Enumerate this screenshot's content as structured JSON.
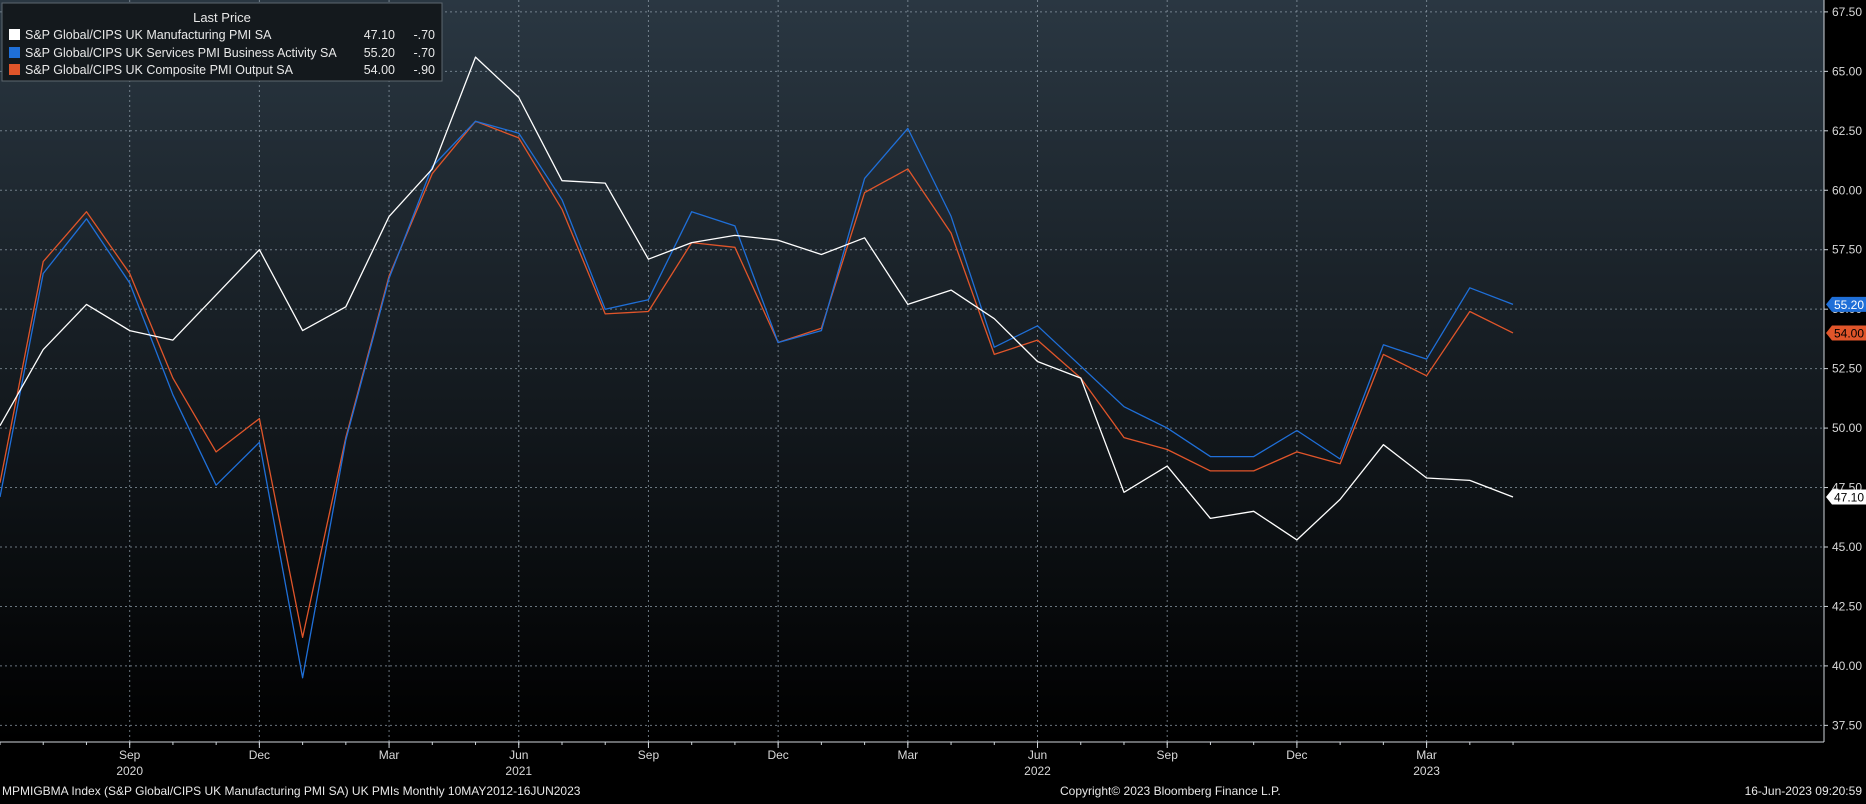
{
  "colors": {
    "background_top": "#2a3742",
    "background_bottom": "#000000",
    "grid": "#8c9aa6",
    "axis_text": "#d8d8d8",
    "manufacturing": "#ffffff",
    "services": "#1f6fd8",
    "composite": "#e0552a"
  },
  "legend": {
    "header": "Last Price",
    "entries": [
      {
        "label": "S&P Global/CIPS UK Manufacturing PMI SA",
        "value": "47.10",
        "change": "-.70",
        "color": "#ffffff"
      },
      {
        "label": "S&P Global/CIPS UK Services PMI Business Activity SA",
        "value": "55.20",
        "change": "-.70",
        "color": "#1f6fd8"
      },
      {
        "label": "S&P Global/CIPS UK Composite PMI Output SA",
        "value": "54.00",
        "change": "-.90",
        "color": "#e0552a"
      }
    ]
  },
  "footer": {
    "left": "MPMIGBMA Index (S&P Global/CIPS UK Manufacturing PMI SA) UK PMIs  Monthly 10MAY2012-16JUN2023",
    "center": "Copyright© 2023 Bloomberg Finance L.P.",
    "right": "16-Jun-2023 09:20:59"
  },
  "chart_data": {
    "type": "line",
    "x": [
      "2020-06",
      "2020-07",
      "2020-08",
      "2020-09",
      "2020-10",
      "2020-11",
      "2020-12",
      "2021-01",
      "2021-02",
      "2021-03",
      "2021-04",
      "2021-05",
      "2021-06",
      "2021-07",
      "2021-08",
      "2021-09",
      "2021-10",
      "2021-11",
      "2021-12",
      "2022-01",
      "2022-02",
      "2022-03",
      "2022-04",
      "2022-05",
      "2022-06",
      "2022-07",
      "2022-08",
      "2022-09",
      "2022-10",
      "2022-11",
      "2022-12",
      "2023-01",
      "2023-02",
      "2023-03",
      "2023-04",
      "2023-05"
    ],
    "series": [
      {
        "name": "S&P Global/CIPS UK Manufacturing PMI SA",
        "color": "#ffffff",
        "values": [
          50.1,
          53.3,
          55.2,
          54.1,
          53.7,
          55.6,
          57.5,
          54.1,
          55.1,
          58.9,
          60.9,
          65.6,
          63.9,
          60.4,
          60.3,
          57.1,
          57.8,
          58.1,
          57.9,
          57.3,
          58.0,
          55.2,
          55.8,
          54.6,
          52.8,
          52.1,
          47.3,
          48.4,
          46.2,
          46.5,
          45.3,
          47.0,
          49.3,
          47.9,
          47.8,
          47.1
        ]
      },
      {
        "name": "S&P Global/CIPS UK Services PMI Business Activity SA",
        "color": "#1f6fd8",
        "values": [
          47.1,
          56.5,
          58.8,
          56.1,
          51.4,
          47.6,
          49.4,
          39.5,
          49.5,
          56.3,
          61.0,
          62.9,
          62.4,
          59.6,
          55.0,
          55.4,
          59.1,
          58.5,
          53.6,
          54.1,
          60.5,
          62.6,
          58.9,
          53.4,
          54.3,
          52.6,
          50.9,
          50.0,
          48.8,
          48.8,
          49.9,
          48.7,
          53.5,
          52.9,
          55.9,
          55.2
        ]
      },
      {
        "name": "S&P Global/CIPS UK Composite PMI Output SA",
        "color": "#e0552a",
        "values": [
          47.7,
          57.0,
          59.1,
          56.5,
          52.1,
          49.0,
          50.4,
          41.2,
          49.6,
          56.4,
          60.7,
          62.9,
          62.2,
          59.2,
          54.8,
          54.9,
          57.8,
          57.6,
          53.6,
          54.2,
          59.9,
          60.9,
          58.2,
          53.1,
          53.7,
          52.1,
          49.6,
          49.1,
          48.2,
          48.2,
          49.0,
          48.5,
          53.1,
          52.2,
          54.9,
          54.0
        ]
      }
    ],
    "ylim": [
      36.8,
      68.0
    ],
    "y_ticks": [
      "37.50",
      "40.00",
      "42.50",
      "45.00",
      "47.50",
      "50.00",
      "52.50",
      "55.00",
      "57.50",
      "60.00",
      "62.50",
      "65.00",
      "67.50"
    ],
    "x_month_ticks": [
      {
        "label": "Sep",
        "index": 3
      },
      {
        "label": "Dec",
        "index": 6
      },
      {
        "label": "Mar",
        "index": 9
      },
      {
        "label": "Jun",
        "index": 12
      },
      {
        "label": "Sep",
        "index": 15
      },
      {
        "label": "Dec",
        "index": 18
      },
      {
        "label": "Mar",
        "index": 21
      },
      {
        "label": "Jun",
        "index": 24
      },
      {
        "label": "Sep",
        "index": 27
      },
      {
        "label": "Dec",
        "index": 30
      },
      {
        "label": "Mar",
        "index": 33
      }
    ],
    "x_year_ticks": [
      {
        "label": "2020",
        "index": 3
      },
      {
        "label": "2021",
        "index": 12
      },
      {
        "label": "2022",
        "index": 24
      },
      {
        "label": "2023",
        "index": 33
      }
    ],
    "last_value_tags": [
      {
        "series": 1,
        "label": "55.20",
        "color": "#1f6fd8",
        "text_color": "#ffffff"
      },
      {
        "series": 2,
        "label": "54.00",
        "color": "#e0552a",
        "text_color": "#000000"
      },
      {
        "series": 0,
        "label": "47.10",
        "color": "#ffffff",
        "text_color": "#000000"
      }
    ],
    "grid": true,
    "legend_position": "top-left"
  }
}
